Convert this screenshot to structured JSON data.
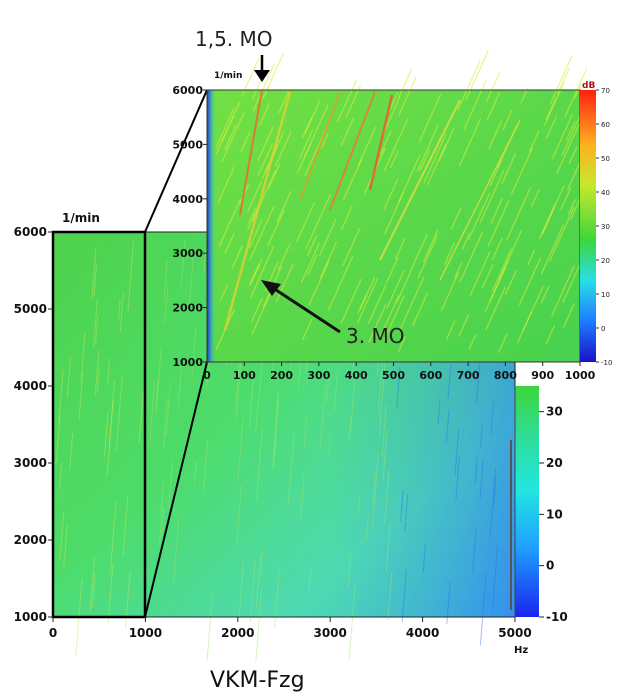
{
  "chart_data": [
    {
      "type": "heatmap",
      "title": "VKM-Fzg",
      "xlabel": "Hz",
      "ylabel": "1/min",
      "xlim": [
        0,
        5000
      ],
      "ylim": [
        1000,
        6000
      ],
      "x_ticks": [
        0,
        1000,
        2000,
        3000,
        4000,
        5000
      ],
      "y_ticks": [
        1000,
        2000,
        3000,
        4000,
        5000,
        6000
      ],
      "colorbar": {
        "ticks": [
          30,
          20,
          10,
          0,
          -10
        ],
        "range": [
          -10,
          35
        ]
      },
      "zoom_region": {
        "x": [
          0,
          1000
        ],
        "y": [
          1000,
          6000
        ]
      },
      "colors": {
        "low": "#1e3cff",
        "mid": "#2ee6d8",
        "high": "#3cd63c"
      }
    },
    {
      "type": "heatmap",
      "title": "",
      "xlabel": "",
      "ylabel": "1/min",
      "xlim": [
        0,
        1000
      ],
      "ylim": [
        1000,
        6000
      ],
      "x_ticks": [
        0,
        100,
        200,
        300,
        400,
        500,
        600,
        700,
        800,
        900,
        1000
      ],
      "y_ticks": [
        1000,
        2000,
        3000,
        4000,
        5000,
        6000
      ],
      "colorbar": {
        "unit": "dB",
        "ticks": [
          70,
          60,
          50,
          40,
          30,
          20,
          10,
          0,
          -10
        ],
        "range": [
          -10,
          70
        ]
      },
      "annotations": [
        {
          "text": "1,5. MO",
          "x": 140,
          "y": 6000
        },
        {
          "text": "3. MO",
          "x": 150,
          "y": 2550
        }
      ],
      "colors": {
        "low": "#1e3cff",
        "mid": "#3cd63c",
        "high": "#ff2a1a",
        "order_line": "#ff6a2a"
      }
    }
  ]
}
